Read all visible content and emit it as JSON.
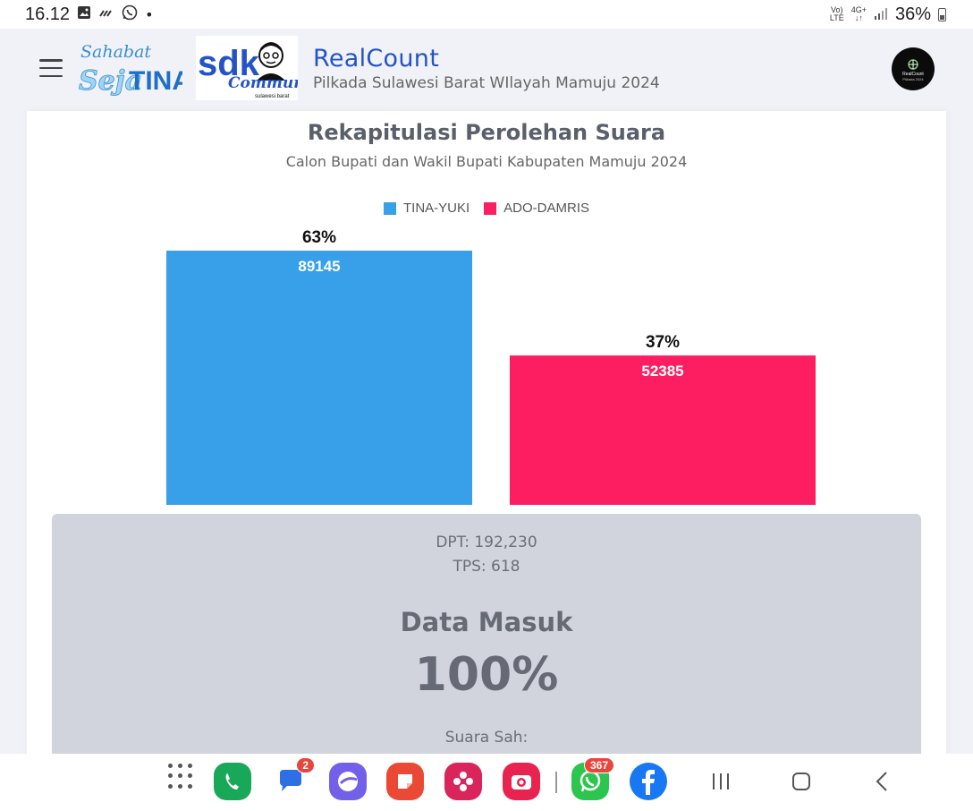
{
  "status_bar": {
    "time": "16.12",
    "battery": "36%",
    "network_top": "Vo)",
    "network_bottom": "LTE",
    "network2_top": "4G+",
    "network2_bottom": "↓↑",
    "dot": "•"
  },
  "header": {
    "title": "RealCount",
    "subtitle": "Pilkada Sulawesi Barat WIlayah Mamuju 2024",
    "logo1": {
      "line1": "Sahabat",
      "line2a": "Seja",
      "line2b": "TINA"
    },
    "logo2": {
      "main": "sdk",
      "script": "Community",
      "small": "sulawesi barat"
    },
    "avatar": {
      "line1": "RealCount",
      "line2": "Pilkada 2024"
    }
  },
  "chart_data": {
    "type": "bar",
    "title": "Rekapitulasi Perolehan Suara",
    "subtitle": "Calon Bupati dan Wakil Bupati Kabupaten Mamuju 2024",
    "categories": [
      "TINA-YUKI",
      "ADO-DAMRIS"
    ],
    "values": [
      89145,
      52385
    ],
    "percent_labels": [
      "63%",
      "37%"
    ],
    "colors": [
      "#37a0e8",
      "#fd1e62"
    ],
    "legend_position": "top-center",
    "ylim": [
      0,
      100000
    ],
    "grid": false
  },
  "stats": {
    "dpt": "DPT: 192,230",
    "tps": "TPS: 618",
    "data_masuk_label": "Data Masuk",
    "data_masuk_value": "100%",
    "suara_sah": "Suara Sah:"
  },
  "navbar": {
    "messages_badge": "2",
    "whatsapp_badge": "367"
  }
}
